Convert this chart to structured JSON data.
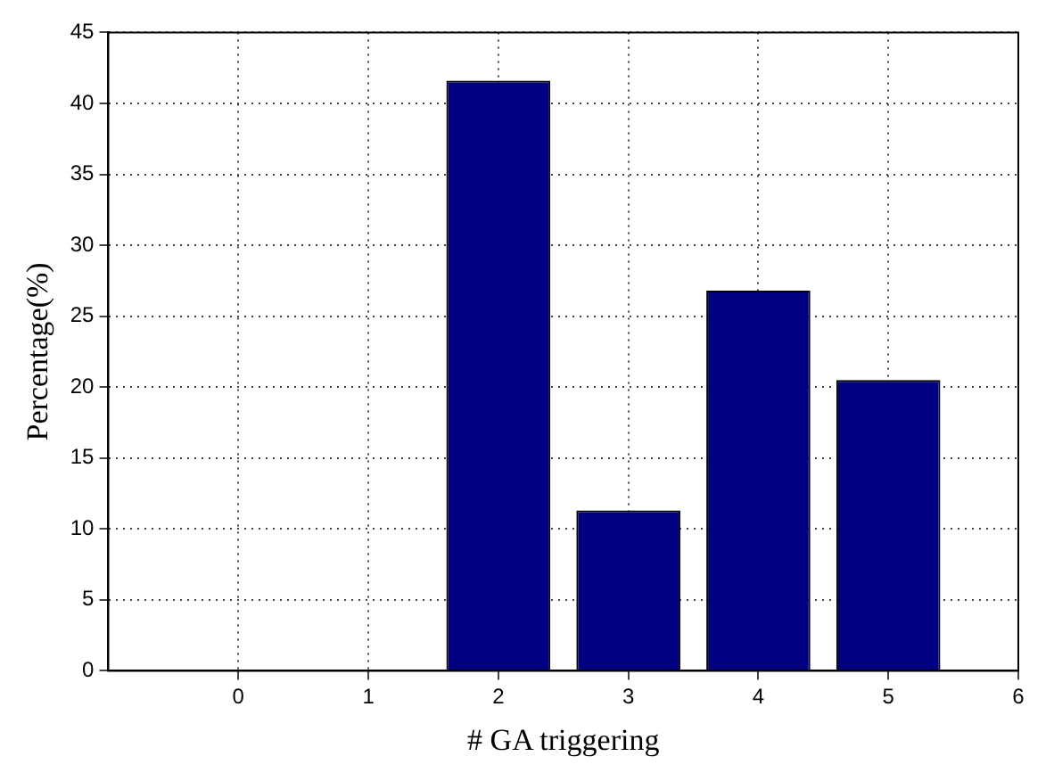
{
  "chart_data": {
    "type": "bar",
    "xlabel": "# GA triggering",
    "ylabel": "Percentage(%)",
    "x": [
      2,
      3,
      4,
      5
    ],
    "values": [
      41.6,
      11.3,
      26.8,
      20.5
    ],
    "color": "#000080",
    "xlim": [
      -1,
      6
    ],
    "xticks": [
      0,
      1,
      2,
      3,
      4,
      5,
      6
    ],
    "ylim": [
      0,
      45
    ],
    "yticks": [
      0,
      5,
      10,
      15,
      20,
      25,
      30,
      35,
      40,
      45
    ],
    "grid": true
  }
}
